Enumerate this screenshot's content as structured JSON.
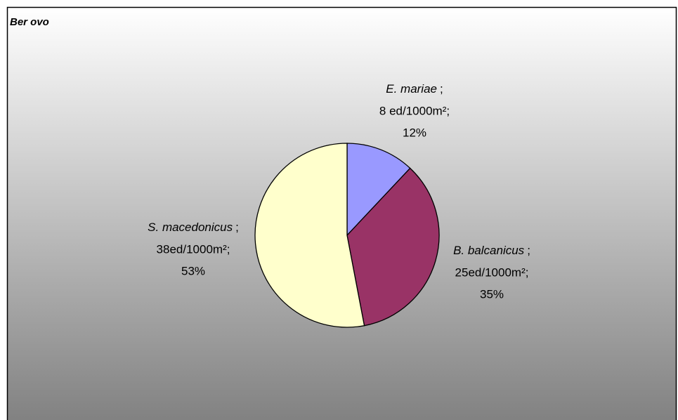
{
  "chart_data": {
    "type": "pie",
    "title": "Ber ovo",
    "categories": [
      "E. mariae",
      "B. balcanicus",
      "S. macedonicus"
    ],
    "values": [
      12,
      35,
      53
    ],
    "value_labels": [
      "12%",
      "35%",
      "53%"
    ],
    "colors": [
      "#9999ff",
      "#993366",
      "#ffffcc"
    ],
    "label_separator": ";",
    "densities": {
      "values": [
        8,
        25,
        38
      ],
      "labels": [
        "8 ed/1000m²;",
        "25ed/1000m²;",
        "38ed/1000m²;"
      ]
    }
  }
}
